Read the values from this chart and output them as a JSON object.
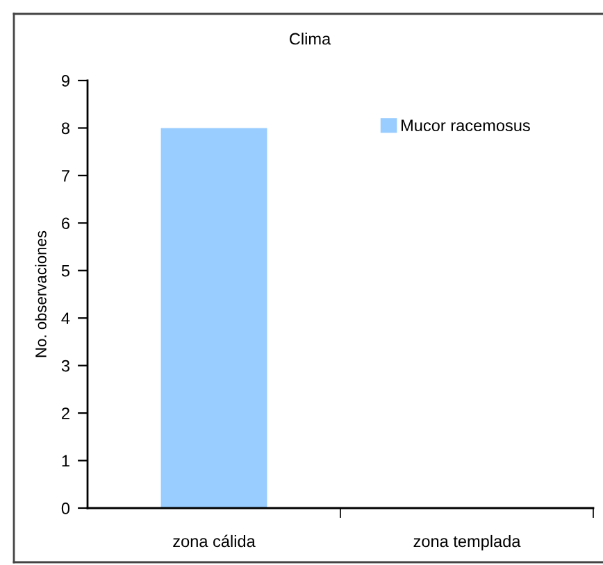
{
  "chart_data": {
    "type": "bar",
    "title": "Clima",
    "ylabel": "No. observaciones",
    "categories": [
      "zona cálida",
      "zona templada"
    ],
    "series": [
      {
        "name": "Mucor racemosus",
        "color": "#99ccff",
        "values": [
          8,
          0
        ]
      }
    ],
    "ylim": [
      0,
      9
    ],
    "yticks": [
      0,
      1,
      2,
      3,
      4,
      5,
      6,
      7,
      8,
      9
    ],
    "grid": false,
    "legend": "top right"
  }
}
